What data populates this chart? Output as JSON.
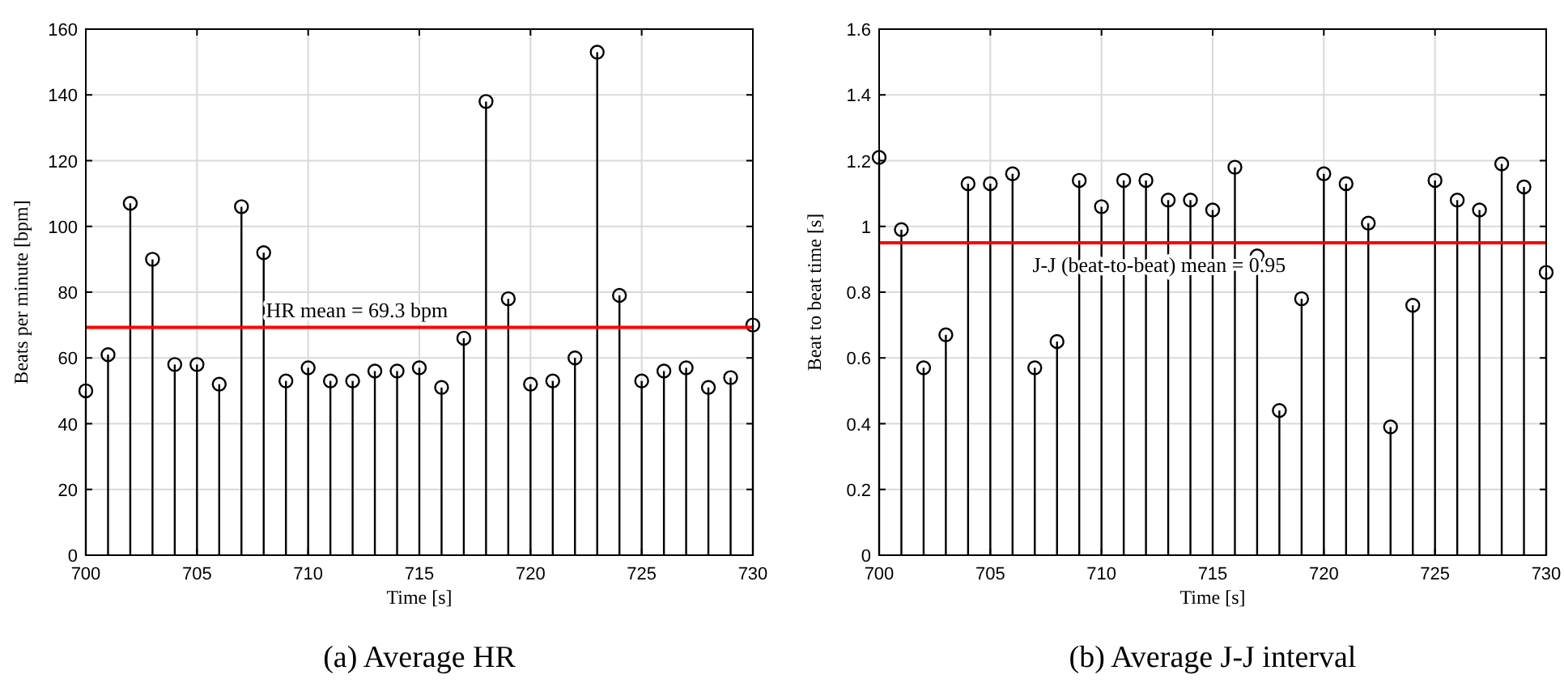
{
  "chart_data": [
    {
      "type": "lollipop",
      "title": "(a) Average HR",
      "xlabel": "Time [s]",
      "ylabel": "Beats per minute [bpm]",
      "x": [
        700,
        701,
        702,
        703,
        704,
        705,
        706,
        707,
        708,
        709,
        710,
        711,
        712,
        713,
        714,
        715,
        716,
        717,
        718,
        719,
        720,
        721,
        722,
        723,
        724,
        725,
        726,
        727,
        728,
        729,
        730
      ],
      "series": [
        {
          "color": "#000000",
          "values": [
            50,
            61,
            107,
            90,
            58,
            58,
            52,
            106,
            92,
            53,
            57,
            53,
            53,
            56,
            56,
            57,
            51,
            66,
            138,
            78,
            52,
            53,
            60,
            153,
            79,
            53,
            56,
            57,
            51,
            54,
            70
          ]
        }
      ],
      "xlim": [
        700,
        730
      ],
      "xticks": [
        700,
        705,
        710,
        715,
        720,
        725,
        730
      ],
      "ylim": [
        0,
        160
      ],
      "yticks": [
        0,
        20,
        40,
        60,
        80,
        100,
        120,
        140,
        160
      ],
      "ref_lines": [
        {
          "axis": "y",
          "value": 69.3,
          "label": "HR mean = 69.3 bpm",
          "color": "#ff0000"
        }
      ],
      "grid": true,
      "marker": "circle"
    },
    {
      "type": "lollipop",
      "title": "(b) Average J-J interval",
      "xlabel": "Time [s]",
      "ylabel": "Beat to beat time [s]",
      "x": [
        700,
        701,
        702,
        703,
        704,
        705,
        706,
        707,
        708,
        709,
        710,
        711,
        712,
        713,
        714,
        715,
        716,
        717,
        718,
        719,
        720,
        721,
        722,
        723,
        724,
        725,
        726,
        727,
        728,
        729,
        730
      ],
      "series": [
        {
          "color": "#000000",
          "values": [
            1.21,
            0.99,
            0.57,
            0.67,
            1.13,
            1.13,
            1.16,
            0.57,
            0.65,
            1.14,
            1.06,
            1.14,
            1.14,
            1.08,
            1.08,
            1.05,
            1.18,
            0.91,
            0.44,
            0.78,
            1.16,
            1.13,
            1.01,
            0.39,
            0.76,
            1.14,
            1.08,
            1.05,
            1.19,
            1.12,
            0.86
          ]
        }
      ],
      "xlim": [
        700,
        730
      ],
      "xticks": [
        700,
        705,
        710,
        715,
        720,
        725,
        730
      ],
      "ylim": [
        0,
        1.6
      ],
      "yticks": [
        0,
        0.2,
        0.4,
        0.6,
        0.8,
        1,
        1.2,
        1.4,
        1.6
      ],
      "ref_lines": [
        {
          "axis": "y",
          "value": 0.95,
          "label": "J-J (beat-to-beat) mean = 0.95",
          "color": "#ff0000"
        }
      ],
      "grid": true,
      "marker": "circle"
    }
  ]
}
